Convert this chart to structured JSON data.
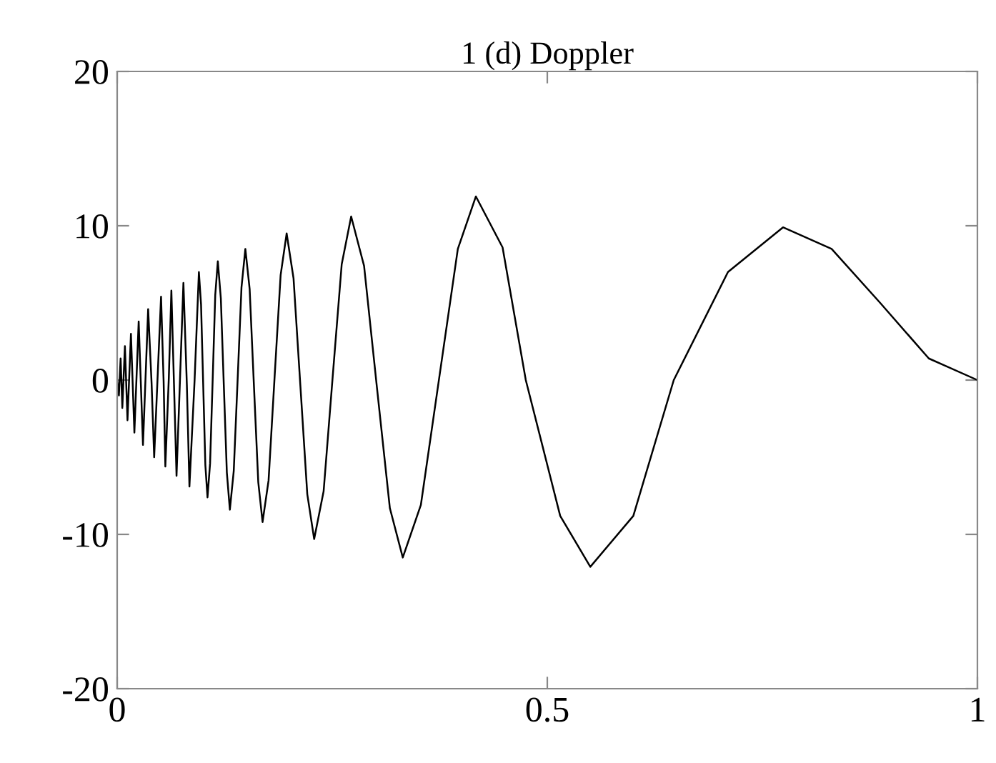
{
  "chart_data": {
    "type": "line",
    "title": "1 (d) Doppler",
    "x": [
      0,
      0.002,
      0.004,
      0.006,
      0.009,
      0.012,
      0.016,
      0.02,
      0.025,
      0.03,
      0.033,
      0.036,
      0.04,
      0.043,
      0.047,
      0.051,
      0.054,
      0.056,
      0.06,
      0.063,
      0.066,
      0.069,
      0.073,
      0.077,
      0.081,
      0.084,
      0.09,
      0.095,
      0.0975,
      0.1,
      0.1025,
      0.105,
      0.108,
      0.111,
      0.114,
      0.117,
      0.1205,
      0.124,
      0.1275,
      0.131,
      0.1355,
      0.14,
      0.1445,
      0.149,
      0.154,
      0.159,
      0.164,
      0.169,
      0.176,
      0.183,
      0.19,
      0.197,
      0.205,
      0.213,
      0.221,
      0.229,
      0.24,
      0.2505,
      0.261,
      0.272,
      0.287,
      0.302,
      0.317,
      0.332,
      0.353,
      0.3745,
      0.396,
      0.417,
      0.448,
      0.475,
      0.515,
      0.55,
      0.6,
      0.647,
      0.71,
      0.774,
      0.8305,
      0.887,
      0.9435,
      1
    ],
    "series": [
      {
        "color": "#000000",
        "values": [
          0,
          -1.0,
          1.4,
          -1.8,
          2.2,
          -2.6,
          3.0,
          -3.4,
          3.8,
          -4.2,
          0.2,
          4.6,
          -0.2,
          -5.0,
          0.2,
          5.4,
          -0.1,
          -5.6,
          0.1,
          5.8,
          -0.2,
          -6.2,
          0.0,
          6.3,
          -0.3,
          -6.9,
          0.0,
          7.0,
          4.9,
          -0.3,
          -5.5,
          -7.6,
          -5.4,
          0.0,
          5.5,
          7.7,
          5.3,
          -0.4,
          -6.0,
          -8.4,
          -5.9,
          0.0,
          6.0,
          8.5,
          5.9,
          -0.4,
          -6.6,
          -9.2,
          -6.5,
          0.2,
          6.8,
          9.5,
          6.6,
          -0.4,
          -7.4,
          -10.3,
          -7.2,
          0.2,
          7.5,
          10.6,
          7.4,
          -0.5,
          -8.3,
          -11.5,
          -8.1,
          0.2,
          8.5,
          11.9,
          8.6,
          0.0,
          -8.8,
          -12.1,
          -8.8,
          0.0,
          7.0,
          9.9,
          8.5,
          5.0,
          1.4,
          0
        ]
      }
    ],
    "xlim": [
      0,
      1
    ],
    "ylim": [
      -20,
      20
    ],
    "xticks": [
      0,
      0.5,
      1
    ],
    "yticks": [
      -20,
      -10,
      0,
      10,
      20
    ]
  }
}
